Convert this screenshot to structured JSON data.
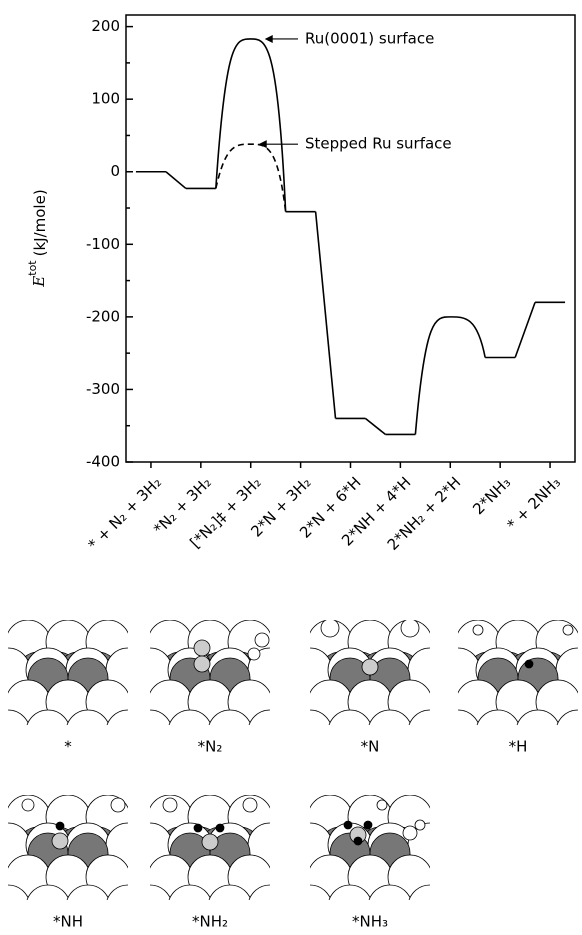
{
  "chart_data": {
    "type": "energy-levels",
    "y_label": {
      "symbol": "E",
      "superscript": "tot",
      "unit": "(kJ/mole)"
    },
    "categories": [
      "* + N₂ + 3H₂",
      "*N₂ + 3H₂",
      "[*N₂]‡ + 3H₂",
      "2*N + 3H₂",
      "2*N + 6*H",
      "2*NH + 4*H",
      "2*NH₂ + 2*H",
      "2*NH₃",
      "* + 2NH₃"
    ],
    "series": [
      {
        "name": "Ru(0001) surface",
        "color": "#000000",
        "values": [
          0,
          -23,
          183,
          -55,
          -340,
          -362,
          -200,
          -256,
          -180
        ]
      },
      {
        "name": "Stepped Ru surface",
        "color": "#000000",
        "dashed": true,
        "values": [
          null,
          null,
          38,
          null,
          null,
          null,
          null,
          null,
          null
        ]
      }
    ],
    "ylim": [
      -400,
      216
    ],
    "yticks": [
      -400,
      -300,
      -200,
      -100,
      0,
      100,
      200
    ],
    "y_minor_ticks": [
      -350,
      -250,
      -150,
      -50,
      50,
      150
    ]
  },
  "panels": [
    {
      "label": "*"
    },
    {
      "label": "*N₂"
    },
    {
      "label": "*N"
    },
    {
      "label": "*H"
    },
    {
      "label": "*NH"
    },
    {
      "label": "*NH₂"
    },
    {
      "label": "*NH₃"
    }
  ]
}
